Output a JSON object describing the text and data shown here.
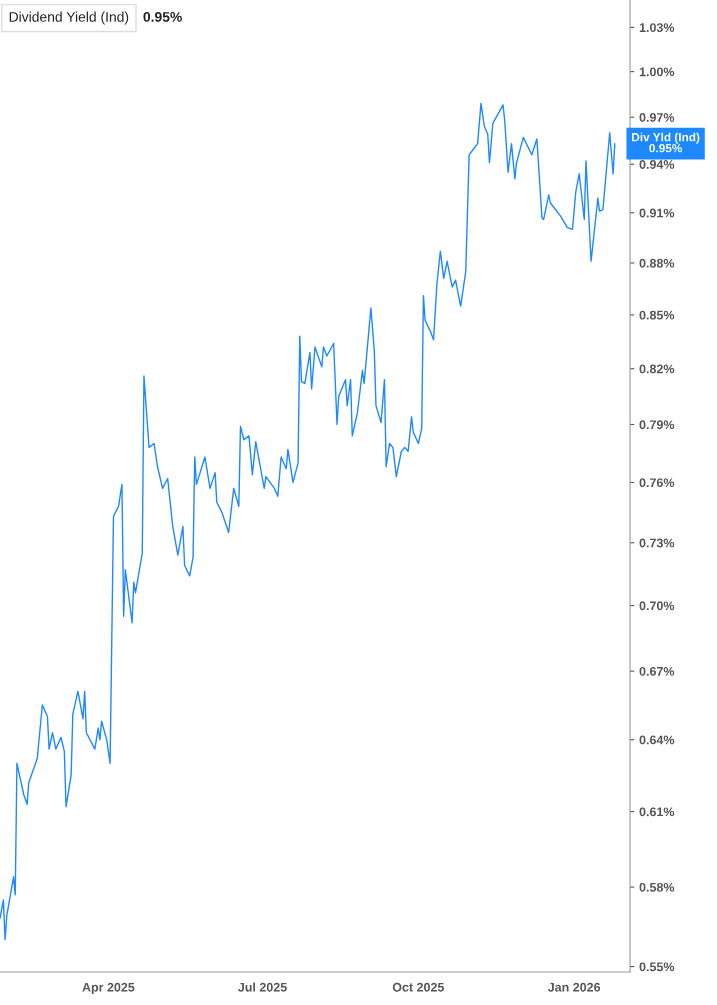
{
  "chart_data": {
    "type": "line",
    "title": "Dividend Yield (Ind)",
    "subtitle": "0.95%",
    "annotations": [
      {
        "text": "Div Yld (Ind)\n0.95%",
        "x": "2026-01-25",
        "y": 0.953
      }
    ],
    "x": [
      "2025-01-27",
      "2025-01-29",
      "2025-01-30",
      "2025-01-31",
      "2025-02-04",
      "2025-02-05",
      "2025-02-06",
      "2025-02-10",
      "2025-02-12",
      "2025-02-13",
      "2025-02-18",
      "2025-02-21",
      "2025-02-24",
      "2025-02-25",
      "2025-02-27",
      "2025-03-01",
      "2025-03-04",
      "2025-03-06",
      "2025-03-07",
      "2025-03-10",
      "2025-03-11",
      "2025-03-14",
      "2025-03-17",
      "2025-03-18",
      "2025-03-19",
      "2025-03-24",
      "2025-03-26",
      "2025-03-27",
      "2025-03-28",
      "2025-03-31",
      "2025-04-02",
      "2025-04-04",
      "2025-04-07",
      "2025-04-09",
      "2025-04-10",
      "2025-04-11",
      "2025-04-15",
      "2025-04-16",
      "2025-04-17",
      "2025-04-21",
      "2025-04-22",
      "2025-04-25",
      "2025-04-28",
      "2025-04-30",
      "2025-05-03",
      "2025-05-06",
      "2025-05-09",
      "2025-05-12",
      "2025-05-15",
      "2025-05-16",
      "2025-05-19",
      "2025-05-21",
      "2025-05-22",
      "2025-05-23",
      "2025-05-28",
      "2025-05-31",
      "2025-06-03",
      "2025-06-04",
      "2025-06-07",
      "2025-06-11",
      "2025-06-14",
      "2025-06-17",
      "2025-06-18",
      "2025-06-20",
      "2025-06-23",
      "2025-06-25",
      "2025-06-27",
      "2025-07-02",
      "2025-07-03",
      "2025-07-08",
      "2025-07-10",
      "2025-07-12",
      "2025-07-15",
      "2025-07-16",
      "2025-07-19",
      "2025-07-22",
      "2025-07-23",
      "2025-07-24",
      "2025-07-26",
      "2025-07-29",
      "2025-07-30",
      "2025-08-01",
      "2025-08-05",
      "2025-08-06",
      "2025-08-08",
      "2025-08-12",
      "2025-08-14",
      "2025-08-15",
      "2025-08-19",
      "2025-08-20",
      "2025-08-22",
      "2025-08-23",
      "2025-08-26",
      "2025-08-29",
      "2025-08-30",
      "2025-09-03",
      "2025-09-05",
      "2025-09-06",
      "2025-09-09",
      "2025-09-11",
      "2025-09-12",
      "2025-09-14",
      "2025-09-16",
      "2025-09-18",
      "2025-09-21",
      "2025-09-23",
      "2025-09-25",
      "2025-09-27",
      "2025-09-28",
      "2025-10-01",
      "2025-10-03",
      "2025-10-04",
      "2025-10-05",
      "2025-10-08",
      "2025-10-10",
      "2025-10-12",
      "2025-10-14",
      "2025-10-16",
      "2025-10-18",
      "2025-10-21",
      "2025-10-23",
      "2025-10-26",
      "2025-10-29",
      "2025-10-31",
      "2025-11-05",
      "2025-11-07",
      "2025-11-09",
      "2025-11-11",
      "2025-11-12",
      "2025-11-14",
      "2025-11-20",
      "2025-11-21",
      "2025-11-23",
      "2025-11-25",
      "2025-11-27",
      "2025-11-28",
      "2025-12-02",
      "2025-12-07",
      "2025-12-10",
      "2025-12-13",
      "2025-12-14",
      "2025-12-17",
      "2025-12-18",
      "2025-12-21",
      "2025-12-24",
      "2025-12-28",
      "2025-12-31",
      "2026-01-02",
      "2026-01-04",
      "2026-01-07",
      "2026-01-08",
      "2026-01-11",
      "2026-01-15",
      "2026-01-16",
      "2026-01-18",
      "2026-01-22",
      "2026-01-24",
      "2026-01-25"
    ],
    "series": [
      {
        "color": "#1e88ff",
        "values": [
          0.568,
          0.575,
          0.56,
          0.569,
          0.584,
          0.577,
          0.63,
          0.617,
          0.613,
          0.622,
          0.632,
          0.655,
          0.65,
          0.636,
          0.643,
          0.636,
          0.641,
          0.635,
          0.612,
          0.625,
          0.651,
          0.661,
          0.649,
          0.661,
          0.643,
          0.636,
          0.645,
          0.64,
          0.648,
          0.64,
          0.63,
          0.743,
          0.748,
          0.759,
          0.695,
          0.717,
          0.692,
          0.711,
          0.706,
          0.725,
          0.816,
          0.778,
          0.78,
          0.768,
          0.757,
          0.762,
          0.738,
          0.724,
          0.738,
          0.719,
          0.714,
          0.723,
          0.773,
          0.759,
          0.773,
          0.757,
          0.765,
          0.75,
          0.745,
          0.735,
          0.757,
          0.748,
          0.789,
          0.782,
          0.784,
          0.764,
          0.781,
          0.757,
          0.763,
          0.757,
          0.753,
          0.773,
          0.767,
          0.777,
          0.76,
          0.77,
          0.838,
          0.813,
          0.812,
          0.829,
          0.809,
          0.832,
          0.821,
          0.832,
          0.827,
          0.834,
          0.79,
          0.805,
          0.814,
          0.8,
          0.814,
          0.784,
          0.796,
          0.819,
          0.812,
          0.854,
          0.83,
          0.8,
          0.791,
          0.814,
          0.768,
          0.78,
          0.778,
          0.763,
          0.776,
          0.778,
          0.776,
          0.794,
          0.786,
          0.78,
          0.788,
          0.861,
          0.847,
          0.841,
          0.836,
          0.868,
          0.887,
          0.871,
          0.881,
          0.866,
          0.87,
          0.855,
          0.875,
          0.946,
          0.953,
          0.979,
          0.964,
          0.959,
          0.941,
          0.966,
          0.978,
          0.968,
          0.935,
          0.953,
          0.931,
          0.941,
          0.957,
          0.946,
          0.956,
          0.907,
          0.906,
          0.921,
          0.916,
          0.912,
          0.908,
          0.901,
          0.9,
          0.923,
          0.934,
          0.906,
          0.942,
          0.881,
          0.919,
          0.911,
          0.912,
          0.96,
          0.934,
          0.953
        ]
      }
    ],
    "xlim": [
      "2025-01-27",
      "2026-02-03"
    ],
    "xticks": [
      {
        "value": "2025-04-01",
        "label": "Apr 2025"
      },
      {
        "value": "2025-07-01",
        "label": "Jul 2025"
      },
      {
        "value": "2025-10-01",
        "label": "Oct 2025"
      },
      {
        "value": "2026-01-01",
        "label": "Jan 2026"
      }
    ],
    "log": "y",
    "ylim": [
      0.548,
      1.049
    ],
    "yticks": [
      {
        "value": 0.55,
        "label": "0.55%"
      },
      {
        "value": 0.58,
        "label": "0.58%"
      },
      {
        "value": 0.61,
        "label": "0.61%"
      },
      {
        "value": 0.64,
        "label": "0.64%"
      },
      {
        "value": 0.67,
        "label": "0.67%"
      },
      {
        "value": 0.7,
        "label": "0.70%"
      },
      {
        "value": 0.73,
        "label": "0.73%"
      },
      {
        "value": 0.76,
        "label": "0.76%"
      },
      {
        "value": 0.79,
        "label": "0.79%"
      },
      {
        "value": 0.82,
        "label": "0.82%"
      },
      {
        "value": 0.85,
        "label": "0.85%"
      },
      {
        "value": 0.88,
        "label": "0.88%"
      },
      {
        "value": 0.91,
        "label": "0.91%"
      },
      {
        "value": 0.94,
        "label": "0.94%"
      },
      {
        "value": 0.97,
        "label": "0.97%"
      },
      {
        "value": 1.0,
        "label": "1.00%"
      },
      {
        "value": 1.03,
        "label": "1.03%"
      }
    ],
    "grid": false,
    "legend": false,
    "marker": "none",
    "line_style": "solid"
  }
}
